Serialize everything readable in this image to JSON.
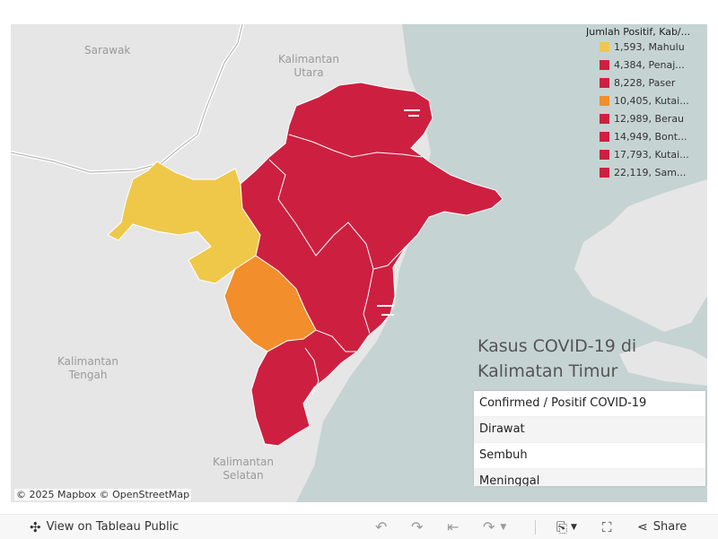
{
  "map": {
    "labels": {
      "sarawak": "Sarawak",
      "kalimantan_utara": [
        "Kalimantan",
        "Utara"
      ],
      "kalimantan_tengah": [
        "Kalimantan",
        "Tengah"
      ],
      "kalimantan_selatan": [
        "Kalimantan",
        "Selatan"
      ]
    },
    "colors": {
      "land": "#e6e6e6",
      "sea": "#c6d3d3",
      "yellow": "#efc84a",
      "orange": "#f28e2b",
      "red": "#cd2040"
    },
    "attribution": "© 2025 Mapbox  © OpenStreetMap"
  },
  "legend": {
    "title": "Jumlah Positif, Kab/...",
    "items": [
      {
        "label": "1,593, Mahulu",
        "color": "#efc84a"
      },
      {
        "label": "4,384, Penaj...",
        "color": "#cd2040"
      },
      {
        "label": "8,228, Paser",
        "color": "#cd2040"
      },
      {
        "label": "10,405, Kutai...",
        "color": "#f28e2b"
      },
      {
        "label": "12,989, Berau",
        "color": "#cd2040"
      },
      {
        "label": "14,949, Bont...",
        "color": "#cd2040"
      },
      {
        "label": "17,793, Kutai...",
        "color": "#cd2040"
      },
      {
        "label": "22,119, Sam...",
        "color": "#cd2040"
      }
    ]
  },
  "title": {
    "line1": "Kasus COVID-19 di",
    "line2": "Kalimatan Timur"
  },
  "menu": {
    "items": [
      "Confirmed / Positif COVID-19",
      "Dirawat",
      "Sembuh",
      "Meninggal"
    ]
  },
  "toolbar": {
    "view_label": "View on Tableau Public",
    "share_label": "Share"
  }
}
